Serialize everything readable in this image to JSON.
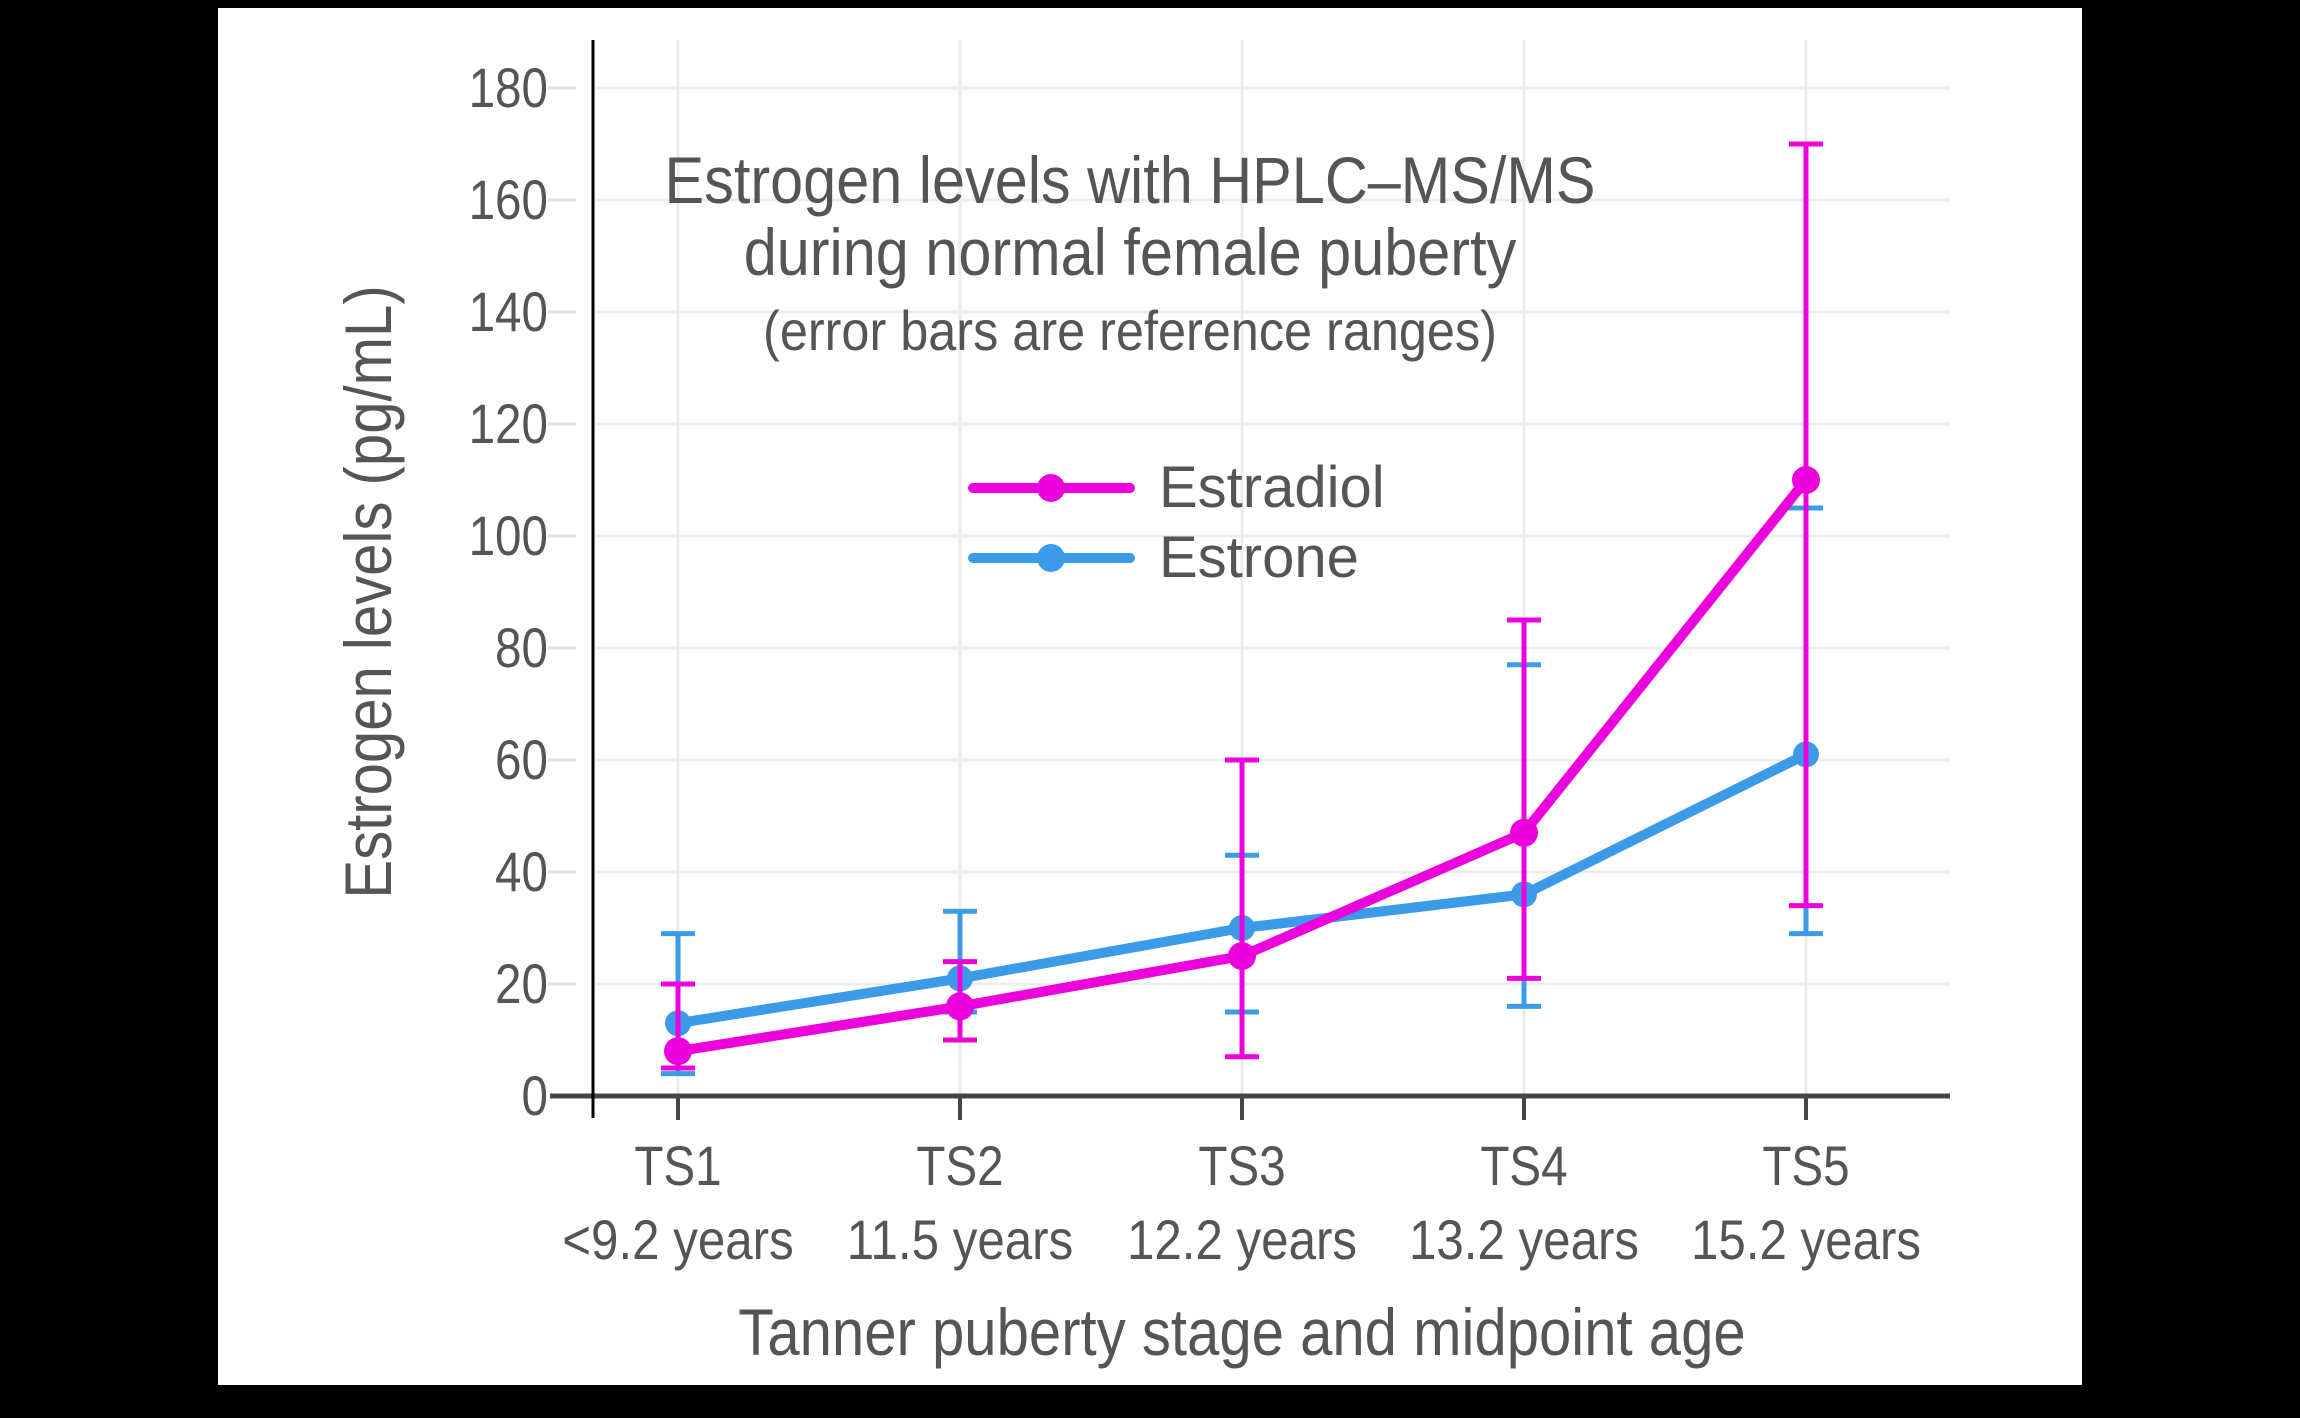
{
  "chart_data": {
    "type": "line",
    "title_lines": [
      "Estrogen levels with HPLC–MS/MS",
      "during normal female puberty"
    ],
    "subtitle": "(error bars are reference ranges)",
    "xlabel": "Tanner puberty stage and midpoint age",
    "ylabel": "Estrogen levels (pg/mL)",
    "categories": [
      "TS1",
      "TS2",
      "TS3",
      "TS4",
      "TS5"
    ],
    "category_sublabels": [
      "<9.2 years",
      "11.5 years",
      "12.2 years",
      "13.2 years",
      "15.2 years"
    ],
    "yticks": [
      0,
      20,
      40,
      60,
      80,
      100,
      120,
      140,
      160,
      180
    ],
    "ylim": [
      0,
      188
    ],
    "grid": true,
    "legend_position": "inside-upper-left",
    "series": [
      {
        "name": "Estradiol",
        "color": "#eb02dc",
        "values": [
          8,
          16,
          25,
          47,
          110
        ],
        "error_low": [
          5,
          10,
          7,
          21,
          34
        ],
        "error_high": [
          20,
          24,
          60,
          85,
          170
        ]
      },
      {
        "name": "Estrone",
        "color": "#3c9be9",
        "values": [
          13,
          21,
          30,
          36,
          61
        ],
        "error_low": [
          4,
          15,
          15,
          16,
          29
        ],
        "error_high": [
          29,
          33,
          43,
          77,
          105
        ]
      }
    ],
    "style": {
      "background": "#000000",
      "panel_background": "#ffffff",
      "text_color": "#555555",
      "axis_color": "#454545",
      "y_axis_line_color": "#000000",
      "gridline_color": "#ececec",
      "tick_stub_color": "#e0e0e0"
    }
  }
}
